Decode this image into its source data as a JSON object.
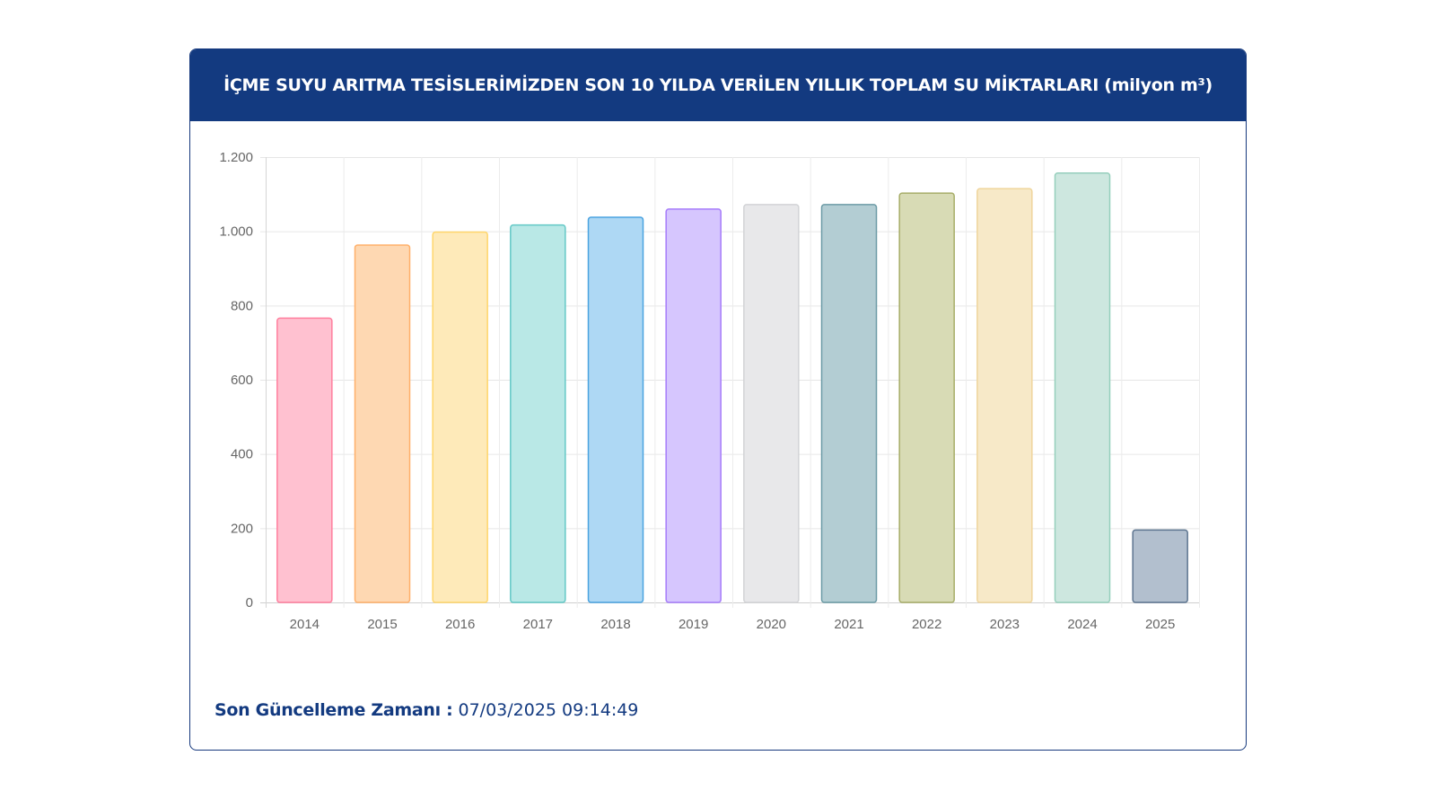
{
  "header": {
    "title": "İÇME SUYU ARITMA TESİSLERİMİZDEN SON 10 YILDA VERİLEN YILLIK TOPLAM SU MİKTARLARI (milyon m³)"
  },
  "footer": {
    "label": "Son Güncelleme Zamanı :",
    "value": " 07/03/2025 09:14:49"
  },
  "chart_data": {
    "type": "bar",
    "title": "İÇME SUYU ARITMA TESİSLERİMİZDEN SON 10 YILDA VERİLEN YILLIK TOPLAM SU MİKTARLARI (milyon m³)",
    "xlabel": "",
    "ylabel": "",
    "ylim": [
      0,
      1200
    ],
    "yticks": [
      0,
      200,
      400,
      600,
      800,
      1000,
      1200
    ],
    "ytick_labels": [
      "0",
      "200",
      "400",
      "600",
      "800",
      "1.000",
      "1.200"
    ],
    "grid": true,
    "categories": [
      "2014",
      "2015",
      "2016",
      "2017",
      "2018",
      "2019",
      "2020",
      "2021",
      "2022",
      "2023",
      "2024",
      "2025"
    ],
    "values": [
      766,
      963,
      998,
      1017,
      1038,
      1060,
      1072,
      1072,
      1103,
      1115,
      1157,
      195
    ],
    "fill_colors": [
      "#ffc1d0",
      "#fed8b2",
      "#feeab9",
      "#b9e8e6",
      "#aed8f4",
      "#d6c6fe",
      "#e8e8ea",
      "#b3cdd3",
      "#d8dbb5",
      "#f7e9c8",
      "#cde7df",
      "#b2bfce"
    ],
    "border_colors": [
      "#ff7f9e",
      "#ffb06a",
      "#ffd66b",
      "#62c8c6",
      "#4aa3e0",
      "#a67cfa",
      "#d2d3d6",
      "#6c9ba6",
      "#a7ad68",
      "#efd59c",
      "#95cfbc",
      "#5d7590"
    ]
  }
}
